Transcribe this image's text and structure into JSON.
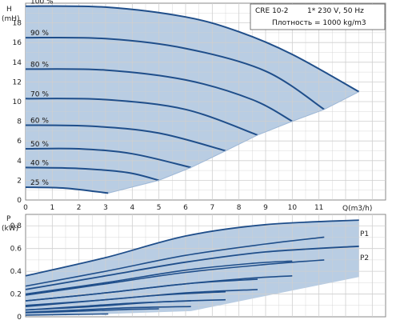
{
  "chart_data": [
    {
      "type": "line",
      "ylabel": "H",
      "yunit": "(mH)",
      "xunit": "Q(m3/h)",
      "x_ticks": [
        0,
        1,
        2,
        3,
        4,
        5,
        6,
        7,
        8,
        9,
        10,
        11
      ],
      "y_ticks": [
        0,
        2,
        4,
        6,
        8,
        10,
        12,
        14,
        16,
        18
      ],
      "xlim": [
        0,
        13.5
      ],
      "ylim": [
        0,
        20
      ],
      "grid": true,
      "info": [
        "CRE 10-2",
        "1* 230 V, 50 Hz",
        "Плотность = 1000 kg/m3"
      ],
      "series": [
        {
          "name": "100 %",
          "speed": 1.0,
          "x": [
            0,
            3,
            6,
            8,
            10,
            12.5
          ],
          "y": [
            19.7,
            19.6,
            18.6,
            17.1,
            14.8,
            11.0
          ]
        },
        {
          "name": "90 %",
          "speed": 0.9,
          "x": [
            0,
            3,
            6,
            9,
            11.2
          ],
          "y": [
            16.5,
            16.4,
            15.4,
            13.1,
            9.2
          ]
        },
        {
          "name": "80 %",
          "speed": 0.8,
          "x": [
            0,
            3,
            6,
            8.5,
            10
          ],
          "y": [
            13.3,
            13.2,
            12.2,
            10.2,
            8.0
          ]
        },
        {
          "name": "70 %",
          "speed": 0.7,
          "x": [
            0,
            3,
            6,
            8.7
          ],
          "y": [
            10.3,
            10.2,
            9.2,
            6.6
          ]
        },
        {
          "name": "60 %",
          "speed": 0.6,
          "x": [
            0,
            2.5,
            5,
            7.5
          ],
          "y": [
            7.6,
            7.5,
            6.8,
            5.0
          ]
        },
        {
          "name": "50 %",
          "speed": 0.5,
          "x": [
            0,
            2,
            4,
            6.2
          ],
          "y": [
            5.2,
            5.2,
            4.7,
            3.3
          ]
        },
        {
          "name": "40 %",
          "speed": 0.4,
          "x": [
            0,
            2,
            3.8,
            5
          ],
          "y": [
            3.3,
            3.2,
            2.8,
            2.0
          ]
        },
        {
          "name": "25 %",
          "speed": 0.25,
          "x": [
            0,
            1.5,
            3.1
          ],
          "y": [
            1.3,
            1.2,
            0.7
          ]
        }
      ]
    },
    {
      "type": "line",
      "ylabel": "P",
      "yunit": "(kW)",
      "y_ticks": [
        0,
        0.2,
        0.4,
        0.6,
        0.8
      ],
      "xlim": [
        0,
        13.5
      ],
      "ylim": [
        0,
        0.9
      ],
      "grid": true,
      "series": [
        {
          "name": "P1",
          "x": [
            0,
            3,
            6,
            9,
            12.5
          ],
          "y": [
            0.36,
            0.52,
            0.71,
            0.81,
            0.85
          ]
        },
        {
          "name": "P2",
          "x": [
            0,
            3,
            6,
            9,
            12.5
          ],
          "y": [
            0.24,
            0.36,
            0.48,
            0.57,
            0.62
          ]
        }
      ],
      "speed_curves": [
        {
          "x": [
            0,
            3,
            6,
            9,
            11.2
          ],
          "y": [
            0.27,
            0.4,
            0.54,
            0.64,
            0.7
          ]
        },
        {
          "x": [
            0,
            3,
            6,
            9,
            11.2
          ],
          "y": [
            0.19,
            0.29,
            0.39,
            0.46,
            0.5
          ]
        },
        {
          "x": [
            0,
            3,
            6,
            8.5,
            10
          ],
          "y": [
            0.2,
            0.3,
            0.41,
            0.47,
            0.49
          ]
        },
        {
          "x": [
            0,
            3,
            6,
            8.5,
            10
          ],
          "y": [
            0.14,
            0.21,
            0.29,
            0.34,
            0.36
          ]
        },
        {
          "x": [
            0,
            3,
            6,
            8.7
          ],
          "y": [
            0.14,
            0.21,
            0.29,
            0.33
          ]
        },
        {
          "x": [
            0,
            3,
            6,
            8.7
          ],
          "y": [
            0.1,
            0.15,
            0.21,
            0.24
          ]
        },
        {
          "x": [
            0,
            2.5,
            5,
            7.5
          ],
          "y": [
            0.09,
            0.14,
            0.19,
            0.22
          ]
        },
        {
          "x": [
            0,
            2.5,
            5,
            7.5
          ],
          "y": [
            0.06,
            0.09,
            0.13,
            0.15
          ]
        },
        {
          "x": [
            0,
            2,
            4,
            6.2
          ],
          "y": [
            0.06,
            0.09,
            0.12,
            0.14
          ]
        },
        {
          "x": [
            0,
            2,
            4,
            6.2
          ],
          "y": [
            0.04,
            0.06,
            0.08,
            0.09
          ]
        },
        {
          "x": [
            0,
            2,
            3.8,
            5
          ],
          "y": [
            0.035,
            0.05,
            0.065,
            0.07
          ]
        },
        {
          "x": [
            0,
            1.5,
            3.1
          ],
          "y": [
            0.015,
            0.02,
            0.025
          ]
        }
      ]
    }
  ]
}
